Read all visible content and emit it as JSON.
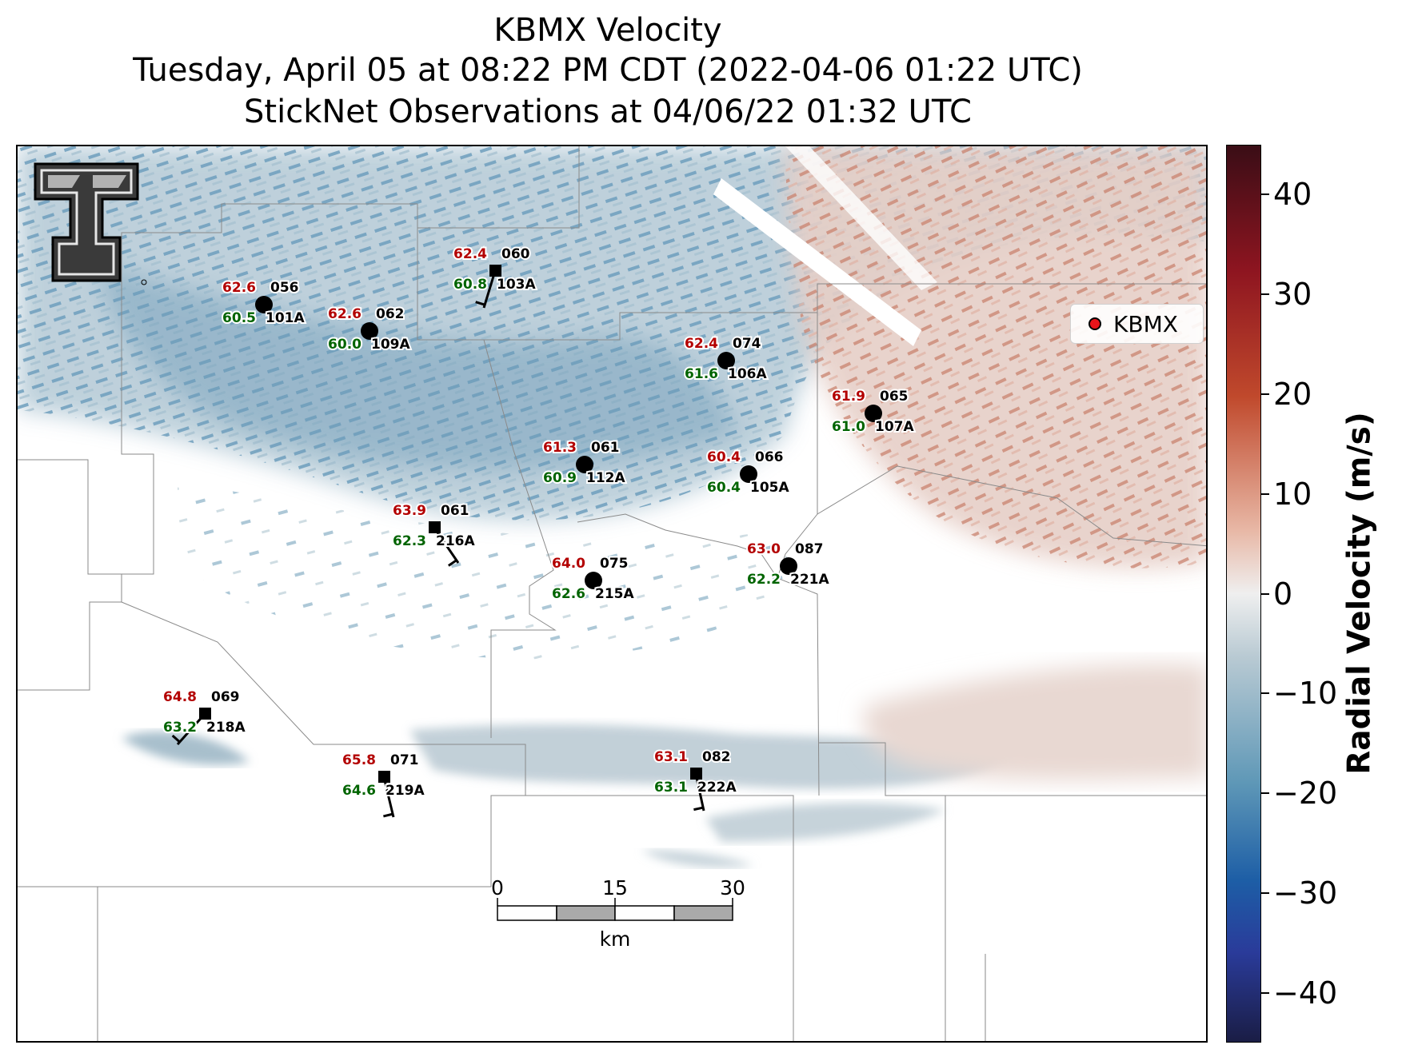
{
  "title": {
    "line1": "KBMX Velocity",
    "line2": "Tuesday, April 05 at 08:22 PM CDT (2022-04-06 01:22 UTC)",
    "line3": "StickNet Observations at 04/06/22 01:32 UTC"
  },
  "legend": {
    "label": "KBMX",
    "marker_color": "#e8141a"
  },
  "colorbar": {
    "label": "Radial Velocity (m/s)",
    "range": [
      -45,
      45
    ],
    "ticks": [
      "40",
      "30",
      "20",
      "10",
      "0",
      "−10",
      "−20",
      "−30",
      "−40"
    ],
    "colormap": "dark red → red → pink → white → light blue-gray → blue → dark navy"
  },
  "scale_bar": {
    "labels": [
      "0",
      "15",
      "30"
    ],
    "unit": "km"
  },
  "stations": [
    {
      "id": "056",
      "probe": "101A",
      "temp": "62.6",
      "dewpoint": "60.5",
      "marker": "circle"
    },
    {
      "id": "062",
      "probe": "109A",
      "temp": "62.6",
      "dewpoint": "60.0",
      "marker": "circle"
    },
    {
      "id": "060",
      "probe": "103A",
      "temp": "62.4",
      "dewpoint": "60.8",
      "marker": "square"
    },
    {
      "id": "074",
      "probe": "106A",
      "temp": "62.4",
      "dewpoint": "61.6",
      "marker": "circle"
    },
    {
      "id": "065",
      "probe": "107A",
      "temp": "61.9",
      "dewpoint": "61.0",
      "marker": "circle"
    },
    {
      "id": "061",
      "probe": "112A",
      "temp": "61.3",
      "dewpoint": "60.9",
      "marker": "circle"
    },
    {
      "id": "066",
      "probe": "105A",
      "temp": "60.4",
      "dewpoint": "60.4",
      "marker": "circle"
    },
    {
      "id": "061",
      "probe": "216A",
      "temp": "63.9",
      "dewpoint": "62.3",
      "marker": "square"
    },
    {
      "id": "075",
      "probe": "215A",
      "temp": "64.0",
      "dewpoint": "62.6",
      "marker": "circle"
    },
    {
      "id": "087",
      "probe": "221A",
      "temp": "63.0",
      "dewpoint": "62.2",
      "marker": "circle"
    },
    {
      "id": "069",
      "probe": "218A",
      "temp": "64.8",
      "dewpoint": "63.2",
      "marker": "square"
    },
    {
      "id": "071",
      "probe": "219A",
      "temp": "65.8",
      "dewpoint": "64.6",
      "marker": "square"
    },
    {
      "id": "082",
      "probe": "222A",
      "temp": "63.1",
      "dewpoint": "63.1",
      "marker": "square"
    }
  ],
  "colors": {
    "temp": "#b30000",
    "dewpoint": "#006400",
    "label": "#000000"
  }
}
